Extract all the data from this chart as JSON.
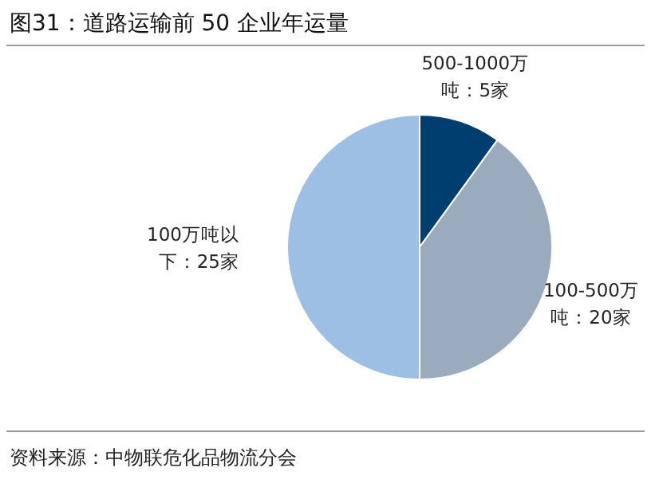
{
  "chart_data": {
    "type": "pie",
    "title": "图31：道路运输前 50 企业年运量",
    "categories": [
      "500-1000万吨：5家",
      "100-500万吨：20家",
      "100万吨以下：25家"
    ],
    "values": [
      5,
      20,
      25
    ],
    "colors": [
      "#003e70",
      "#9aabbd",
      "#9dbfe3"
    ],
    "annotations": [
      "资料来源：中物联危化品物流分会"
    ]
  }
}
